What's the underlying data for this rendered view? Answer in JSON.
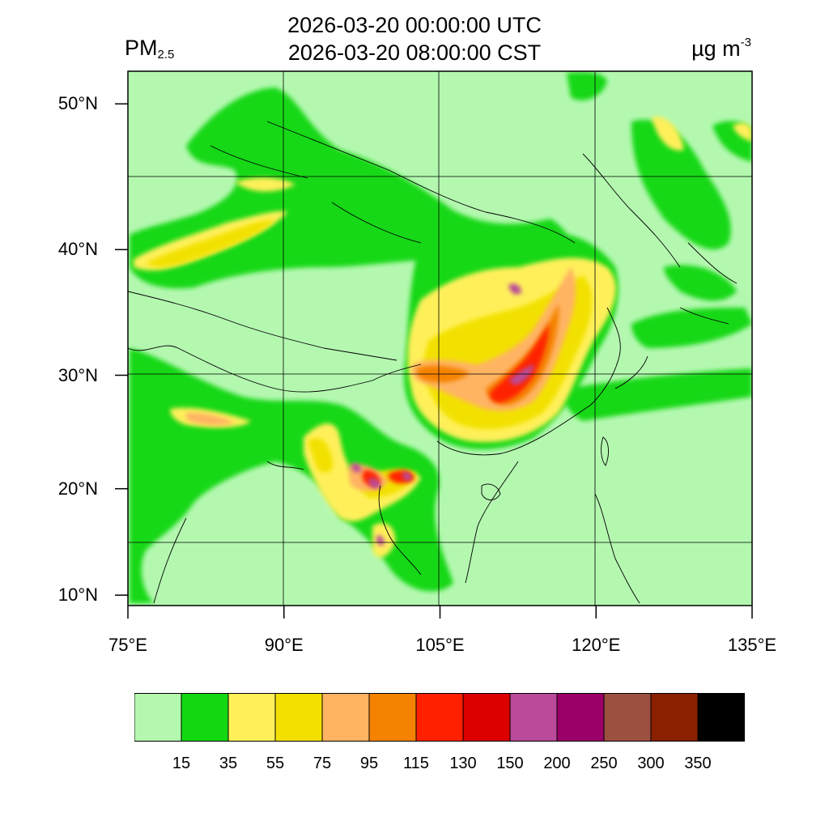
{
  "header": {
    "title_utc": "2026-03-20 00:00:00 UTC",
    "title_cst": "2026-03-20 08:00:00 CST",
    "variable": "PM",
    "variable_sub": "2.5",
    "unit": "µg m",
    "unit_sup": "-3"
  },
  "map": {
    "extent": {
      "lon": [
        75,
        135
      ],
      "lat": [
        9,
        52
      ]
    },
    "lat_ticks": [
      {
        "value": 50,
        "label": "50°N"
      },
      {
        "value": 40,
        "label": "40°N"
      },
      {
        "value": 30,
        "label": "30°N"
      },
      {
        "value": 20,
        "label": "20°N"
      },
      {
        "value": 10,
        "label": "10°N"
      }
    ],
    "lon_ticks": [
      {
        "value": 75,
        "label": "75°E"
      },
      {
        "value": 90,
        "label": "90°E"
      },
      {
        "value": 105,
        "label": "105°E"
      },
      {
        "value": 120,
        "label": "120°E"
      },
      {
        "value": 135,
        "label": "135°E"
      }
    ],
    "gridlines": true,
    "background_color": "#b4f8b0"
  },
  "colorbar": {
    "colors": [
      "#b4f8b0",
      "#12d812",
      "#fff05a",
      "#f2e100",
      "#ffb464",
      "#f58200",
      "#ff2000",
      "#dc0000",
      "#b94b9a",
      "#9b0069",
      "#9c5040",
      "#8a2000",
      "#000000"
    ],
    "labels": [
      "15",
      "35",
      "55",
      "75",
      "95",
      "115",
      "130",
      "150",
      "200",
      "250",
      "300",
      "350"
    ]
  }
}
